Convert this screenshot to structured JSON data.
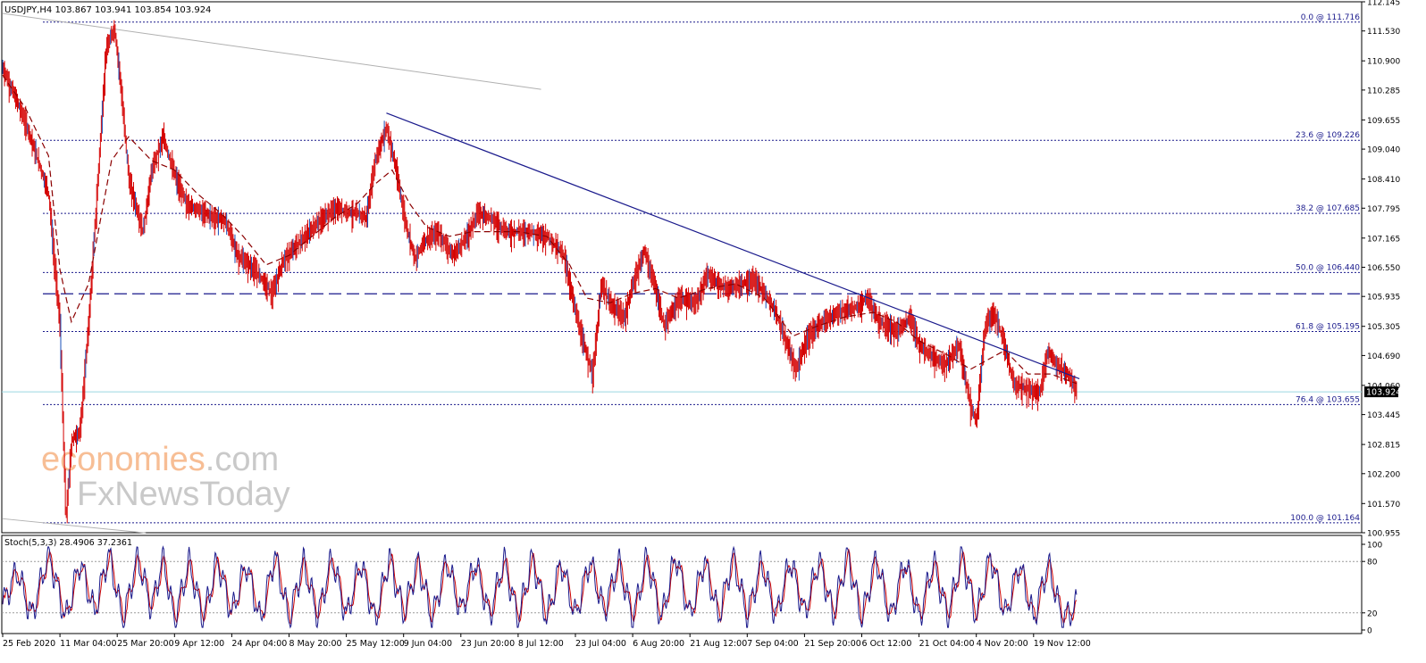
{
  "window": {
    "main_header": "USDJPY,H4  103.867 103.941 103.854 103.924",
    "stoch_header": "Stoch(5,3,3) 28.4906 37.2361",
    "current_price_label": "103.924"
  },
  "watermark": {
    "line1_colored": "economies",
    "line1_rest": ".com",
    "line2_colored": "Fx",
    "line2_rest": "NewsToday"
  },
  "colors": {
    "background": "#ffffff",
    "candle": "#d40000",
    "candle_alt": "#1a4fb8",
    "moving_average": "#8b0000",
    "fib_line": "#1a1a8c",
    "trendline": "#1a1a8c",
    "channel": "#b0b0b0",
    "current_price_line": "#9ad8e0",
    "stoch_main": "#1a1a8c",
    "stoch_signal": "#cc0000",
    "watermark_orange": "#f7b78a",
    "watermark_grey": "#c4c4c4"
  },
  "chart_data": {
    "type": "line",
    "symbol": "USDJPY",
    "timeframe": "H4",
    "ylim": [
      100.955,
      112.145
    ],
    "y_ticks": [
      112.145,
      111.53,
      110.9,
      110.285,
      109.655,
      109.04,
      108.41,
      107.795,
      107.165,
      106.55,
      105.935,
      105.305,
      104.69,
      104.06,
      103.445,
      102.815,
      102.2,
      101.57,
      100.955
    ],
    "x_ticks": [
      "25 Feb 2020",
      "11 Mar 04:00",
      "25 Mar 20:00",
      "9 Apr 12:00",
      "24 Apr 04:00",
      "8 May 20:00",
      "25 May 12:00",
      "9 Jun 04:00",
      "23 Jun 20:00",
      "8 Jul 12:00",
      "23 Jul 04:00",
      "6 Aug 20:00",
      "21 Aug 12:00",
      "7 Sep 04:00",
      "21 Sep 20:00",
      "6 Oct 12:00",
      "21 Oct 04:00",
      "4 Nov 20:00",
      "19 Nov 12:00"
    ],
    "price_path": [
      [
        0,
        110.75
      ],
      [
        0.4,
        109.6
      ],
      [
        0.8,
        108.1
      ],
      [
        1.0,
        105.3
      ],
      [
        1.1,
        101.2
      ],
      [
        1.2,
        102.9
      ],
      [
        1.35,
        103.1
      ],
      [
        1.5,
        105.4
      ],
      [
        1.65,
        108.2
      ],
      [
        1.8,
        111.1
      ],
      [
        1.95,
        111.6
      ],
      [
        2.05,
        110.5
      ],
      [
        2.2,
        108.4
      ],
      [
        2.45,
        107.3
      ],
      [
        2.6,
        108.6
      ],
      [
        2.8,
        109.3
      ],
      [
        3.0,
        108.5
      ],
      [
        3.2,
        107.9
      ],
      [
        3.5,
        107.7
      ],
      [
        3.9,
        107.5
      ],
      [
        4.1,
        106.8
      ],
      [
        4.4,
        106.5
      ],
      [
        4.7,
        106.0
      ],
      [
        4.9,
        106.7
      ],
      [
        5.2,
        107.1
      ],
      [
        5.5,
        107.5
      ],
      [
        5.8,
        107.8
      ],
      [
        6.1,
        107.7
      ],
      [
        6.35,
        107.6
      ],
      [
        6.5,
        108.8
      ],
      [
        6.7,
        109.5
      ],
      [
        6.85,
        108.7
      ],
      [
        7.05,
        107.4
      ],
      [
        7.2,
        106.7
      ],
      [
        7.35,
        107.1
      ],
      [
        7.6,
        107.3
      ],
      [
        7.85,
        106.8
      ],
      [
        8.05,
        107.1
      ],
      [
        8.3,
        107.7
      ],
      [
        8.5,
        107.6
      ],
      [
        8.8,
        107.3
      ],
      [
        9.2,
        107.3
      ],
      [
        9.5,
        107.2
      ],
      [
        9.8,
        106.8
      ],
      [
        9.95,
        105.9
      ],
      [
        10.1,
        105.1
      ],
      [
        10.3,
        104.3
      ],
      [
        10.45,
        106.2
      ],
      [
        10.6,
        105.8
      ],
      [
        10.85,
        105.5
      ],
      [
        11.05,
        106.4
      ],
      [
        11.2,
        106.9
      ],
      [
        11.4,
        106.1
      ],
      [
        11.55,
        105.3
      ],
      [
        11.8,
        105.9
      ],
      [
        12.1,
        105.8
      ],
      [
        12.3,
        106.4
      ],
      [
        12.6,
        106.1
      ],
      [
        12.9,
        106.2
      ],
      [
        13.1,
        106.3
      ],
      [
        13.3,
        106.0
      ],
      [
        13.5,
        105.6
      ],
      [
        13.7,
        104.9
      ],
      [
        13.85,
        104.4
      ],
      [
        14.05,
        105.1
      ],
      [
        14.3,
        105.4
      ],
      [
        14.6,
        105.6
      ],
      [
        14.9,
        105.7
      ],
      [
        15.1,
        105.9
      ],
      [
        15.3,
        105.4
      ],
      [
        15.6,
        105.2
      ],
      [
        15.85,
        105.5
      ],
      [
        16.0,
        104.9
      ],
      [
        16.2,
        104.7
      ],
      [
        16.45,
        104.5
      ],
      [
        16.7,
        104.9
      ],
      [
        16.9,
        103.6
      ],
      [
        17.0,
        103.3
      ],
      [
        17.15,
        105.3
      ],
      [
        17.3,
        105.6
      ],
      [
        17.45,
        105.1
      ],
      [
        17.65,
        104.1
      ],
      [
        17.85,
        104.0
      ],
      [
        18.1,
        103.9
      ],
      [
        18.25,
        104.8
      ],
      [
        18.4,
        104.5
      ],
      [
        18.6,
        104.3
      ],
      [
        18.75,
        103.924
      ]
    ],
    "moving_average_path": [
      [
        0,
        110.6
      ],
      [
        0.4,
        109.9
      ],
      [
        0.8,
        108.9
      ],
      [
        1.0,
        106.5
      ],
      [
        1.2,
        105.4
      ],
      [
        1.5,
        106.2
      ],
      [
        1.9,
        108.8
      ],
      [
        2.2,
        109.3
      ],
      [
        2.6,
        108.8
      ],
      [
        3.0,
        108.6
      ],
      [
        3.4,
        108.1
      ],
      [
        3.8,
        107.7
      ],
      [
        4.2,
        107.2
      ],
      [
        4.6,
        106.6
      ],
      [
        5.0,
        106.8
      ],
      [
        5.4,
        107.2
      ],
      [
        5.8,
        107.6
      ],
      [
        6.2,
        107.9
      ],
      [
        6.5,
        108.3
      ],
      [
        6.8,
        108.6
      ],
      [
        7.1,
        107.9
      ],
      [
        7.4,
        107.4
      ],
      [
        7.8,
        107.2
      ],
      [
        8.2,
        107.3
      ],
      [
        8.6,
        107.3
      ],
      [
        9.0,
        107.3
      ],
      [
        9.5,
        107.2
      ],
      [
        9.9,
        106.6
      ],
      [
        10.2,
        105.9
      ],
      [
        10.6,
        105.8
      ],
      [
        11.0,
        106.0
      ],
      [
        11.4,
        106.1
      ],
      [
        11.8,
        105.9
      ],
      [
        12.3,
        106.1
      ],
      [
        12.8,
        106.2
      ],
      [
        13.3,
        105.9
      ],
      [
        13.8,
        105.1
      ],
      [
        14.2,
        105.3
      ],
      [
        14.7,
        105.5
      ],
      [
        15.2,
        105.6
      ],
      [
        15.6,
        105.4
      ],
      [
        16.0,
        105.0
      ],
      [
        16.5,
        104.7
      ],
      [
        16.9,
        104.4
      ],
      [
        17.2,
        104.6
      ],
      [
        17.5,
        104.8
      ],
      [
        17.9,
        104.3
      ],
      [
        18.3,
        104.3
      ],
      [
        18.75,
        104.1
      ]
    ],
    "fibonacci_levels": [
      {
        "label": "0.0 @ 111.716",
        "price": 111.716
      },
      {
        "label": "23.6 @ 109.226",
        "price": 109.226
      },
      {
        "label": "38.2 @ 107.685",
        "price": 107.685
      },
      {
        "label": "50.0 @ 106.440",
        "price": 106.44
      },
      {
        "label": "61.8 @ 105.195",
        "price": 105.195
      },
      {
        "label": "76.4 @ 103.655",
        "price": 103.655
      },
      {
        "label": "100.0 @ 101.164",
        "price": 101.164
      }
    ],
    "horizontal_resistance": 105.99,
    "current_price": 103.924,
    "descending_trendline": [
      [
        6.7,
        109.8
      ],
      [
        18.8,
        104.2
      ]
    ],
    "channel_upper": [
      [
        0.0,
        111.9
      ],
      [
        9.4,
        110.3
      ]
    ],
    "channel_lower": [
      [
        0.0,
        101.25
      ],
      [
        2.5,
        100.95
      ]
    ],
    "stochastic": {
      "params": "5,3,3",
      "main_value": 28.4906,
      "signal_value": 37.2361,
      "ylim": [
        0,
        100
      ],
      "levels": [
        80,
        20
      ],
      "y_ticks": [
        100,
        80,
        20,
        0
      ],
      "cycle_lows": [
        [
          0.0,
          30
        ],
        [
          0.5,
          15
        ],
        [
          1.1,
          12
        ],
        [
          1.6,
          20
        ],
        [
          2.1,
          10
        ],
        [
          2.6,
          25
        ],
        [
          3.0,
          10
        ],
        [
          3.5,
          12
        ],
        [
          4.0,
          18
        ],
        [
          4.5,
          10
        ],
        [
          5.0,
          12
        ],
        [
          5.5,
          15
        ],
        [
          6.0,
          15
        ],
        [
          6.5,
          10
        ],
        [
          7.0,
          18
        ],
        [
          7.5,
          12
        ],
        [
          8.0,
          20
        ],
        [
          8.5,
          15
        ],
        [
          9.0,
          12
        ],
        [
          9.5,
          12
        ],
        [
          10.0,
          15
        ],
        [
          10.5,
          20
        ],
        [
          11.0,
          12
        ],
        [
          11.5,
          12
        ],
        [
          12.0,
          15
        ],
        [
          12.5,
          15
        ],
        [
          13.0,
          15
        ],
        [
          13.5,
          15
        ],
        [
          14.0,
          18
        ],
        [
          14.5,
          18
        ],
        [
          15.0,
          12
        ],
        [
          15.5,
          12
        ],
        [
          16.0,
          12
        ],
        [
          16.5,
          15
        ],
        [
          17.0,
          15
        ],
        [
          17.5,
          15
        ],
        [
          18.0,
          12
        ],
        [
          18.5,
          12
        ]
      ],
      "cycle_highs": [
        [
          0.25,
          70
        ],
        [
          0.8,
          90
        ],
        [
          1.35,
          80
        ],
        [
          1.85,
          90
        ],
        [
          2.35,
          85
        ],
        [
          2.8,
          85
        ],
        [
          3.25,
          80
        ],
        [
          3.75,
          82
        ],
        [
          4.25,
          78
        ],
        [
          4.75,
          88
        ],
        [
          5.25,
          80
        ],
        [
          5.75,
          85
        ],
        [
          6.25,
          80
        ],
        [
          6.75,
          85
        ],
        [
          7.25,
          80
        ],
        [
          7.75,
          82
        ],
        [
          8.25,
          80
        ],
        [
          8.75,
          82
        ],
        [
          9.25,
          85
        ],
        [
          9.75,
          80
        ],
        [
          10.25,
          82
        ],
        [
          10.75,
          80
        ],
        [
          11.25,
          85
        ],
        [
          11.75,
          88
        ],
        [
          12.25,
          82
        ],
        [
          12.75,
          85
        ],
        [
          13.25,
          80
        ],
        [
          13.75,
          82
        ],
        [
          14.25,
          82
        ],
        [
          14.75,
          88
        ],
        [
          15.25,
          85
        ],
        [
          15.75,
          82
        ],
        [
          16.25,
          80
        ],
        [
          16.75,
          88
        ],
        [
          17.25,
          88
        ],
        [
          17.75,
          78
        ],
        [
          18.25,
          78
        ]
      ],
      "last_point": [
        18.75,
        28.4906
      ]
    }
  }
}
